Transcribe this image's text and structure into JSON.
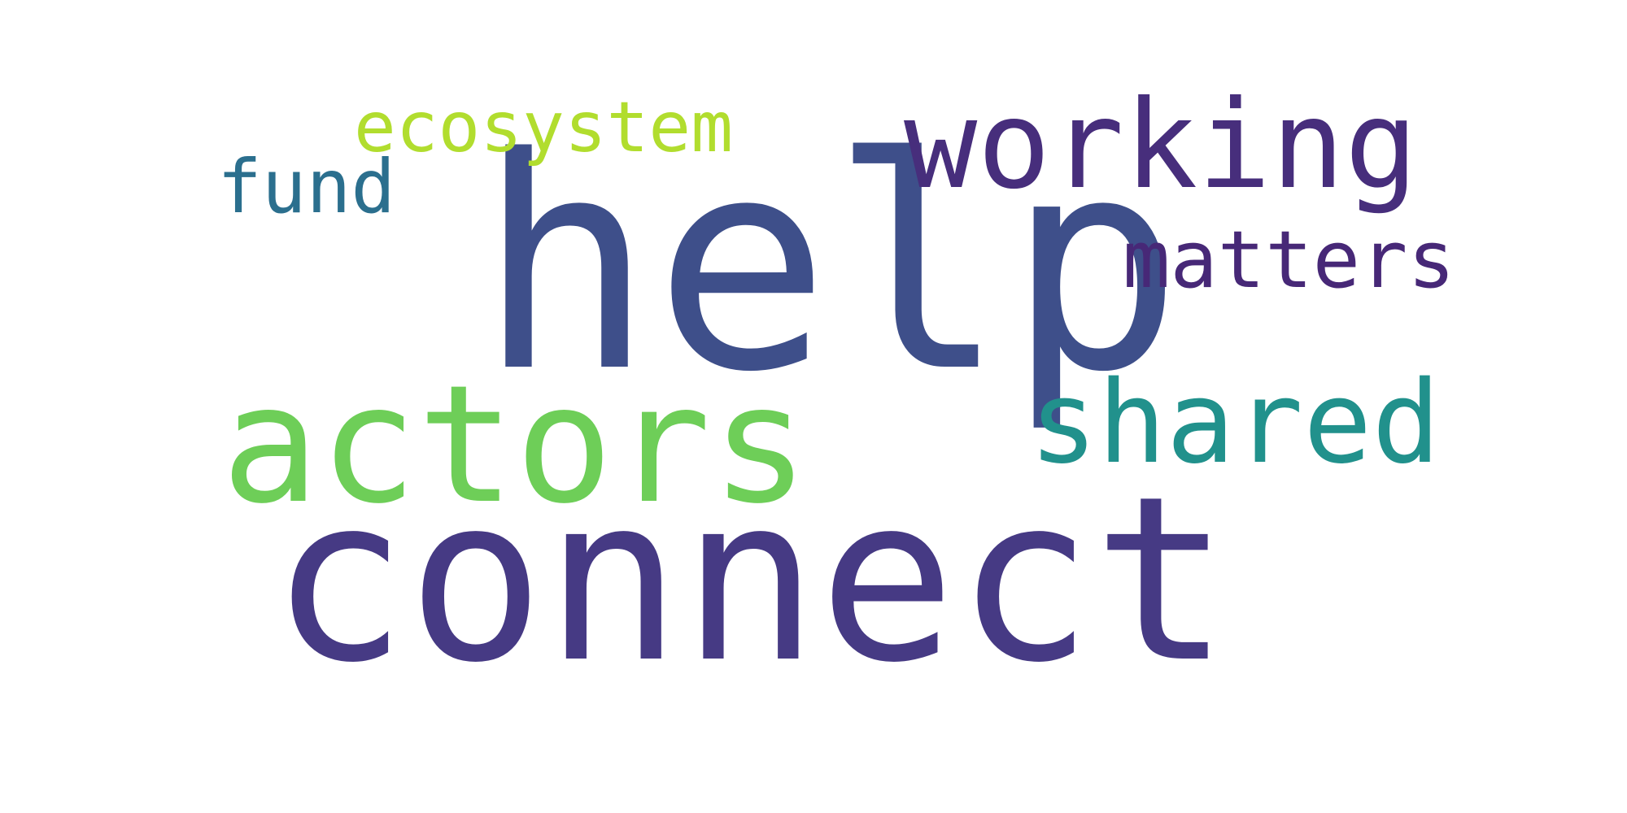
{
  "words": [
    {
      "text": "help",
      "color": "#3e4f8a"
    },
    {
      "text": "connect",
      "color": "#463a84"
    },
    {
      "text": "actors",
      "color": "#6ece58"
    },
    {
      "text": "working",
      "color": "#472e7c"
    },
    {
      "text": "shared",
      "color": "#21918c"
    },
    {
      "text": "matters",
      "color": "#472877"
    },
    {
      "text": "ecosystem",
      "color": "#b1dd2e"
    },
    {
      "text": "fund",
      "color": "#2b6f8e"
    }
  ]
}
